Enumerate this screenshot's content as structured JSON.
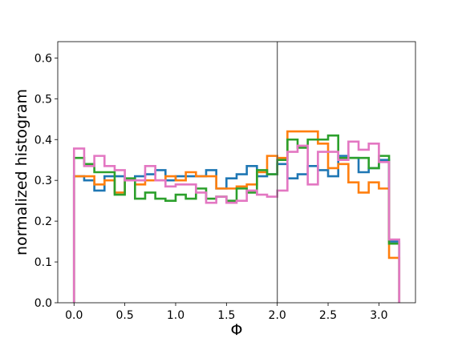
{
  "chart_data": {
    "type": "step-histogram",
    "xlabel": "Φ",
    "ylabel": "normalized histogram",
    "xlim": [
      -0.16,
      3.36
    ],
    "ylim": [
      0.0,
      0.64
    ],
    "xticks": [
      "0.0",
      "0.5",
      "1.0",
      "1.5",
      "2.0",
      "2.5",
      "3.0"
    ],
    "yticks": [
      "0.0",
      "0.1",
      "0.2",
      "0.3",
      "0.4",
      "0.5",
      "0.6"
    ],
    "grid": false,
    "legend": "none",
    "vline_x": 2.0,
    "vline_color": "#555555",
    "bin_edges": [
      0.0,
      0.1,
      0.2,
      0.3,
      0.4,
      0.5,
      0.6,
      0.7,
      0.8,
      0.9,
      1.0,
      1.1,
      1.2,
      1.3,
      1.4,
      1.5,
      1.6,
      1.7,
      1.8,
      1.9,
      2.0,
      2.1,
      2.2,
      2.3,
      2.4,
      2.5,
      2.6,
      2.7,
      2.8,
      2.9,
      3.0,
      3.1,
      3.2
    ],
    "series": [
      {
        "color": "#1f77b4",
        "values": [
          0.31,
          0.3,
          0.275,
          0.31,
          0.31,
          0.3,
          0.31,
          0.315,
          0.325,
          0.3,
          0.31,
          0.31,
          0.31,
          0.325,
          0.28,
          0.305,
          0.315,
          0.335,
          0.31,
          0.315,
          0.34,
          0.305,
          0.315,
          0.335,
          0.325,
          0.31,
          0.36,
          0.355,
          0.32,
          0.33,
          0.35,
          0.15
        ]
      },
      {
        "color": "#ff7f0e",
        "values": [
          0.31,
          0.31,
          0.29,
          0.3,
          0.27,
          0.3,
          0.29,
          0.3,
          0.3,
          0.31,
          0.3,
          0.32,
          0.31,
          0.31,
          0.28,
          0.28,
          0.285,
          0.29,
          0.32,
          0.36,
          0.355,
          0.42,
          0.42,
          0.42,
          0.39,
          0.33,
          0.34,
          0.295,
          0.27,
          0.295,
          0.28,
          0.11
        ]
      },
      {
        "color": "#2ca02c",
        "values": [
          0.355,
          0.34,
          0.32,
          0.32,
          0.265,
          0.305,
          0.255,
          0.27,
          0.255,
          0.25,
          0.265,
          0.255,
          0.28,
          0.255,
          0.26,
          0.25,
          0.28,
          0.27,
          0.325,
          0.315,
          0.35,
          0.4,
          0.38,
          0.4,
          0.4,
          0.41,
          0.355,
          0.355,
          0.355,
          0.33,
          0.36,
          0.145
        ]
      },
      {
        "color": "#e377c2",
        "values": [
          0.378,
          0.335,
          0.36,
          0.335,
          0.325,
          0.3,
          0.3,
          0.335,
          0.3,
          0.285,
          0.29,
          0.29,
          0.27,
          0.245,
          0.26,
          0.245,
          0.25,
          0.275,
          0.265,
          0.26,
          0.275,
          0.37,
          0.385,
          0.29,
          0.37,
          0.37,
          0.35,
          0.395,
          0.375,
          0.39,
          0.345,
          0.155
        ]
      }
    ]
  }
}
